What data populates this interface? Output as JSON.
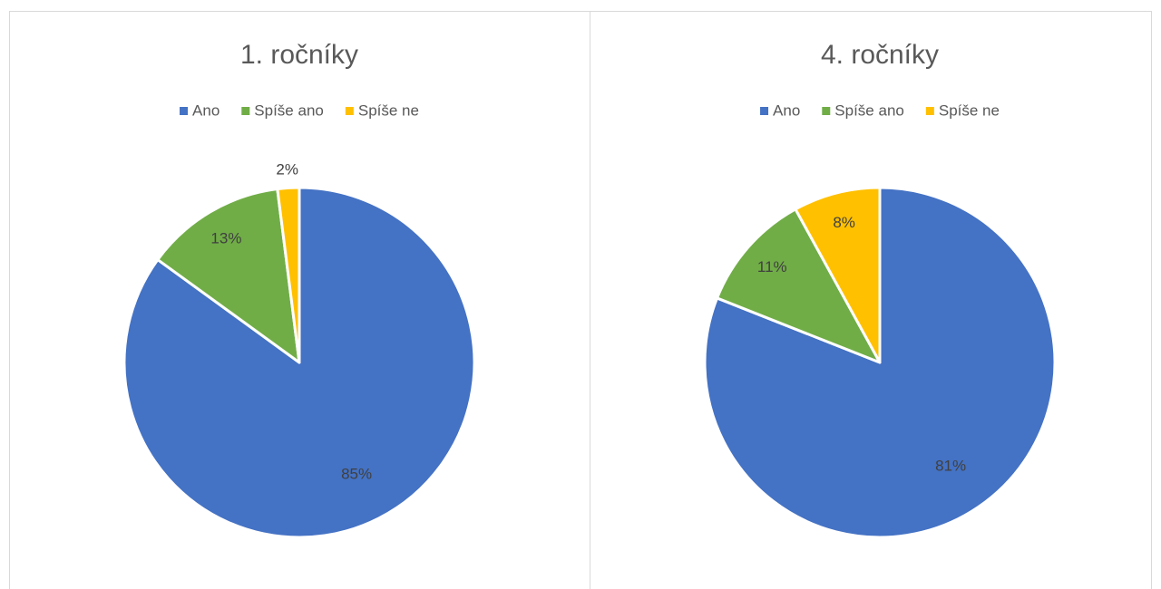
{
  "chart_data": [
    {
      "type": "pie",
      "title": "1. ročníky",
      "categories": [
        "Ano",
        "Spíše ano",
        "Spíše ne"
      ],
      "values": [
        85,
        13,
        2
      ],
      "value_labels": [
        "85%",
        "13%",
        "2%"
      ],
      "colors": [
        "#4472c4",
        "#70ad47",
        "#ffc000"
      ]
    },
    {
      "type": "pie",
      "title": "4. ročníky",
      "categories": [
        "Ano",
        "Spíše ano",
        "Spíše ne"
      ],
      "values": [
        81,
        11,
        8
      ],
      "value_labels": [
        "81%",
        "11%",
        "8%"
      ],
      "colors": [
        "#4472c4",
        "#70ad47",
        "#ffc000"
      ]
    }
  ]
}
